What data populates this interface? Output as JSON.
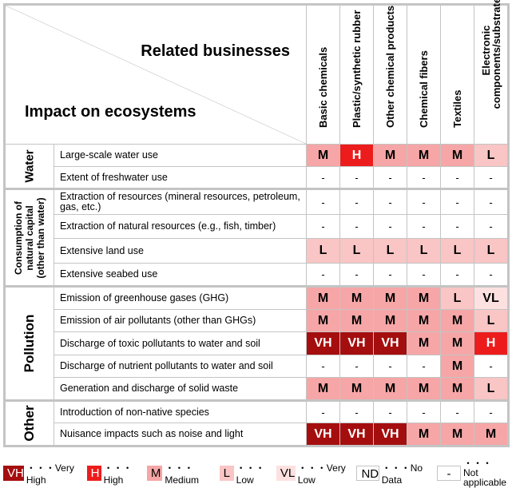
{
  "colors": {
    "VH": "#a50e0e",
    "H": "#ed1c1c",
    "M": "#f6a6a6",
    "L": "#f9c5c5",
    "VL": "#fde1e1",
    "ND": "#ffffff",
    "-": "#ffffff"
  },
  "header": {
    "related_businesses": "Related businesses",
    "impact_on_ecosystems": "Impact on ecosystems"
  },
  "chart_data": {
    "type": "heatmap",
    "columns": [
      "Basic chemicals",
      "Plastic/synthetic rubber",
      "Other chemical products",
      "Chemical fibers",
      "Textiles",
      "Electronic components/substrates"
    ],
    "groups": [
      {
        "name": "Water",
        "rows": [
          {
            "label": "Large-scale water use",
            "values": [
              "M",
              "H",
              "M",
              "M",
              "M",
              "L"
            ]
          },
          {
            "label": "Extent of freshwater use",
            "values": [
              "-",
              "-",
              "-",
              "-",
              "-",
              "-"
            ]
          }
        ]
      },
      {
        "name": "Consumption of natural capital (other than water)",
        "rows": [
          {
            "label": "Extraction of resources (mineral resources, petroleum, gas, etc.)",
            "values": [
              "-",
              "-",
              "-",
              "-",
              "-",
              "-"
            ]
          },
          {
            "label": "Extraction of natural resources (e.g., fish, timber)",
            "values": [
              "-",
              "-",
              "-",
              "-",
              "-",
              "-"
            ]
          },
          {
            "label": "Extensive land use",
            "values": [
              "L",
              "L",
              "L",
              "L",
              "L",
              "L"
            ]
          },
          {
            "label": "Extensive seabed use",
            "values": [
              "-",
              "-",
              "-",
              "-",
              "-",
              "-"
            ]
          }
        ]
      },
      {
        "name": "Pollution",
        "rows": [
          {
            "label": "Emission of greenhouse gases (GHG)",
            "values": [
              "M",
              "M",
              "M",
              "M",
              "L",
              "VL"
            ]
          },
          {
            "label": "Emission of air pollutants (other than GHGs)",
            "values": [
              "M",
              "M",
              "M",
              "M",
              "M",
              "L"
            ]
          },
          {
            "label": "Discharge of toxic pollutants to water and soil",
            "values": [
              "VH",
              "VH",
              "VH",
              "M",
              "M",
              "H"
            ]
          },
          {
            "label": "Discharge of nutrient pollutants to water and soil",
            "values": [
              "-",
              "-",
              "-",
              "-",
              "M",
              "-"
            ]
          },
          {
            "label": "Generation and discharge of solid waste",
            "values": [
              "M",
              "M",
              "M",
              "M",
              "M",
              "L"
            ]
          }
        ]
      },
      {
        "name": "Other",
        "rows": [
          {
            "label": "Introduction of non-native species",
            "values": [
              "-",
              "-",
              "-",
              "-",
              "-",
              "-"
            ]
          },
          {
            "label": "Nuisance impacts such as noise and light",
            "values": [
              "VH",
              "VH",
              "VH",
              "M",
              "M",
              "M"
            ]
          }
        ]
      }
    ]
  },
  "legend": [
    {
      "code": "VH",
      "label": "・・・Very High"
    },
    {
      "code": "H",
      "label": "・・・High"
    },
    {
      "code": "M",
      "label": "・・・Medium"
    },
    {
      "code": "L",
      "label": "・・・Low"
    },
    {
      "code": "VL",
      "label": "・・・Very Low"
    },
    {
      "code": "ND",
      "label": "・・・No Data"
    },
    {
      "code": "-",
      "label": "・・・Not applicable"
    }
  ]
}
